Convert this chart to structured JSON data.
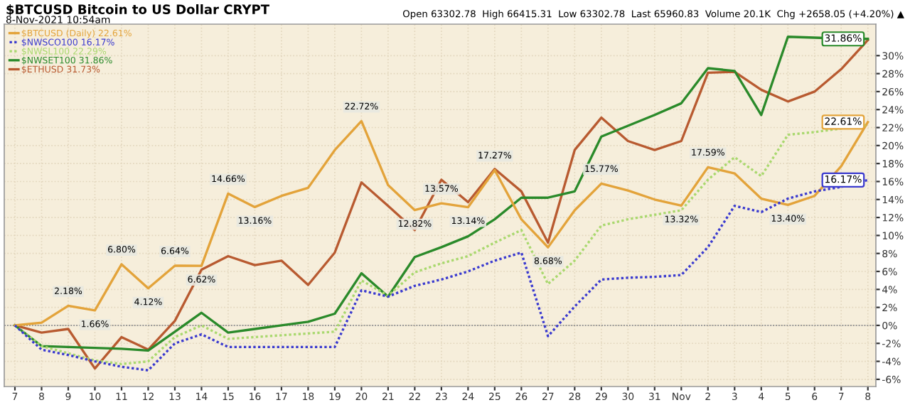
{
  "chart_data": {
    "type": "line",
    "title": "$BTCUSD Bitcoin to US Dollar CRYPT",
    "subtitle": "8-Nov-2021 10:54am",
    "annotations": [
      "Open 63302.78  High 66415.31  Low 63302.78  Last 65960.83  Volume 20.1K  Chg +2658.05 (+4.20%) ▲"
    ],
    "categories": [
      "7",
      "8",
      "9",
      "10",
      "11",
      "12",
      "13",
      "14",
      "15",
      "16",
      "17",
      "18",
      "19",
      "20",
      "21",
      "22",
      "23",
      "24",
      "25",
      "26",
      "27",
      "28",
      "29",
      "30",
      "31",
      "Nov",
      "2",
      "3",
      "4",
      "5",
      "6",
      "7",
      "8"
    ],
    "series": [
      {
        "name": "$BTCUSD (Daily) 22.61%",
        "color": "#e3a33a",
        "line_style": "solid",
        "values": [
          0,
          0.3,
          2.18,
          1.66,
          6.8,
          4.12,
          6.64,
          6.62,
          14.66,
          13.16,
          14.4,
          15.3,
          19.5,
          22.72,
          15.6,
          12.82,
          13.57,
          13.14,
          17.27,
          11.8,
          8.68,
          12.8,
          15.77,
          15.0,
          14.0,
          13.32,
          17.59,
          16.9,
          14.1,
          13.4,
          14.4,
          17.7,
          22.61
        ],
        "value_labels": [
          null,
          null,
          "2.18%",
          "1.66%",
          "6.80%",
          "4.12%",
          "6.64%",
          "6.62%",
          "14.66%",
          "13.16%",
          null,
          null,
          null,
          "22.72%",
          null,
          "12.82%",
          "13.57%",
          "13.14%",
          "17.27%",
          null,
          "8.68%",
          null,
          "15.77%",
          null,
          null,
          "13.32%",
          "17.59%",
          null,
          null,
          "13.40%",
          null,
          null,
          "22.61%"
        ]
      },
      {
        "name": "$NWSCO100 16.17%",
        "color": "#3a3acf",
        "line_style": "dotted",
        "values": [
          0,
          -2.7,
          -3.3,
          -4.0,
          -4.6,
          -5.0,
          -2.0,
          -1.0,
          -2.4,
          -2.4,
          -2.4,
          -2.4,
          -2.4,
          3.9,
          3.2,
          4.4,
          5.1,
          6.0,
          7.2,
          8.1,
          -1.2,
          2.1,
          5.1,
          5.3,
          5.4,
          5.6,
          8.7,
          13.3,
          12.6,
          14.1,
          14.9,
          15.4,
          16.17
        ],
        "value_labels": [
          null,
          null,
          null,
          null,
          null,
          null,
          null,
          null,
          null,
          null,
          null,
          null,
          null,
          null,
          null,
          null,
          null,
          null,
          null,
          null,
          null,
          null,
          null,
          null,
          null,
          null,
          null,
          null,
          null,
          null,
          null,
          null,
          "16.17%"
        ]
      },
      {
        "name": "$NWSL100 22.29%",
        "color": "#a9d86e",
        "line_style": "dotted",
        "values": [
          0,
          -2.3,
          -3.1,
          -3.9,
          -4.3,
          -4.0,
          -1.3,
          0,
          -1.5,
          -1.3,
          -1.1,
          -0.9,
          -0.7,
          5.0,
          3.3,
          5.9,
          6.9,
          7.7,
          9.2,
          10.6,
          4.6,
          7.2,
          11.1,
          11.8,
          12.3,
          12.8,
          16.2,
          18.7,
          16.6,
          21.2,
          21.5,
          21.9,
          22.29
        ]
      },
      {
        "name": "$NWSET100 31.86%",
        "color": "#2a8a2a",
        "line_style": "solid",
        "values": [
          0,
          -2.3,
          -2.4,
          -2.5,
          -2.6,
          -2.8,
          -0.7,
          1.4,
          -0.8,
          -0.4,
          0,
          0.4,
          1.3,
          5.8,
          3.2,
          7.6,
          8.7,
          9.9,
          11.8,
          14.2,
          14.2,
          14.9,
          21.0,
          22.2,
          23.4,
          24.7,
          28.6,
          28.3,
          23.4,
          32.1,
          32.0,
          31.9,
          31.86
        ],
        "value_labels": [
          null,
          null,
          null,
          null,
          null,
          null,
          null,
          null,
          null,
          null,
          null,
          null,
          null,
          null,
          null,
          null,
          null,
          null,
          null,
          null,
          null,
          null,
          null,
          null,
          null,
          null,
          null,
          null,
          null,
          null,
          null,
          null,
          "31.86%"
        ]
      },
      {
        "name": "$ETHUSD 31.73%",
        "color": "#b85a30",
        "line_style": "solid",
        "values": [
          0,
          -0.8,
          -0.4,
          -4.8,
          -1.3,
          -2.7,
          0.5,
          6.2,
          7.7,
          6.7,
          7.2,
          4.5,
          8.1,
          15.9,
          13.3,
          10.6,
          16.2,
          13.7,
          17.4,
          14.9,
          9.2,
          19.5,
          23.1,
          20.5,
          19.5,
          20.5,
          28.1,
          28.2,
          26.2,
          24.9,
          26.0,
          28.5,
          31.73
        ]
      }
    ],
    "ylim": [
      -6.8,
      33.5
    ],
    "yticks": [
      {
        "value": -6,
        "label": "-6%"
      },
      {
        "value": -4,
        "label": "-4%"
      },
      {
        "value": -2,
        "label": "-2%"
      },
      {
        "value": 0,
        "label": "0%"
      },
      {
        "value": 2,
        "label": "2%"
      },
      {
        "value": 4,
        "label": "4%"
      },
      {
        "value": 6,
        "label": "6%"
      },
      {
        "value": 8,
        "label": "8%"
      },
      {
        "value": 10,
        "label": "10%"
      },
      {
        "value": 12,
        "label": "12%"
      },
      {
        "value": 14,
        "label": "14%"
      },
      {
        "value": 16,
        "label": "16%"
      },
      {
        "value": 18,
        "label": "18%"
      },
      {
        "value": 20,
        "label": "20%"
      },
      {
        "value": 22,
        "label": "22%"
      },
      {
        "value": 24,
        "label": "24%"
      },
      {
        "value": 26,
        "label": "26%"
      },
      {
        "value": 28,
        "label": "28%"
      },
      {
        "value": 30,
        "label": "30%"
      }
    ],
    "ref_lines": [
      {
        "axis": "y",
        "value": 0,
        "color": "#999999",
        "line_style": "dotted"
      }
    ],
    "grid": true,
    "legend": "top left",
    "marker": "none"
  }
}
